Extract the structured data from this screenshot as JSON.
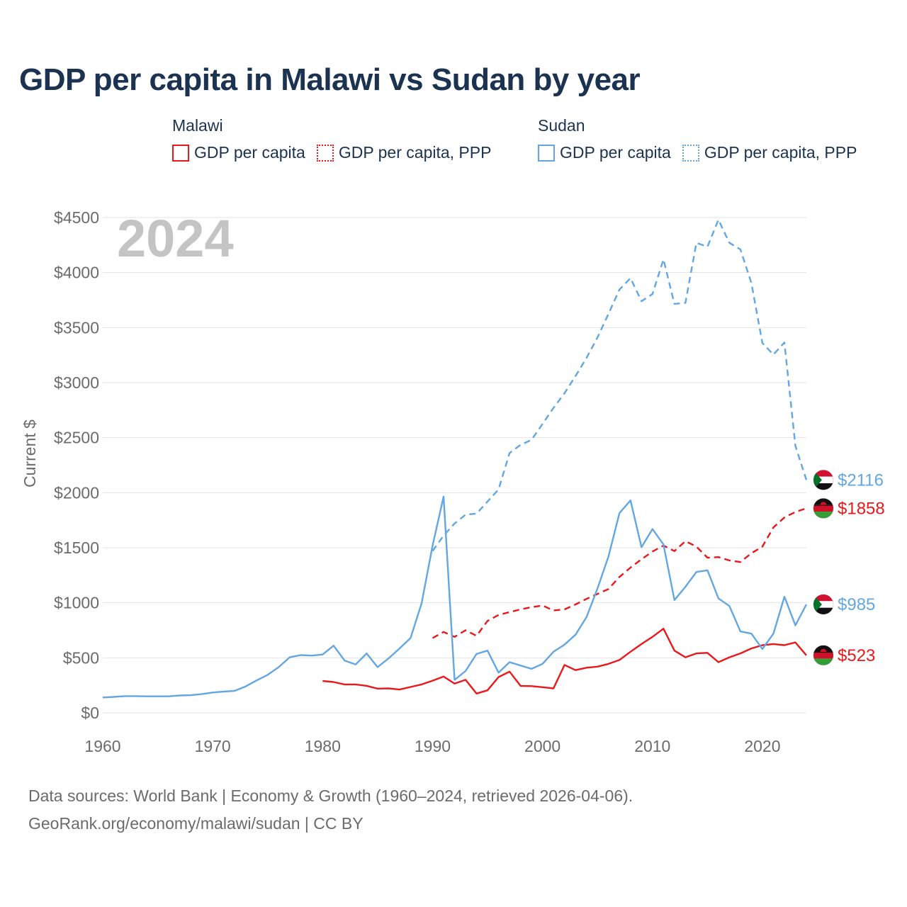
{
  "title": "GDP per capita in Malawi vs Sudan by year",
  "legend": {
    "groups": [
      {
        "name": "Malawi",
        "items": [
          "GDP per capita",
          "GDP per capita, PPP"
        ],
        "color": "#e8181b"
      },
      {
        "name": "Sudan",
        "items": [
          "GDP per capita",
          "GDP per capita, PPP"
        ],
        "color": "#62a6e2"
      }
    ]
  },
  "footer": {
    "line1": "Data sources: World Bank | Economy & Growth (1960–2024, retrieved 2026-04-06).",
    "line2": "GeoRank.org/economy/malawi/sudan | CC BY"
  },
  "chart_data": {
    "type": "line",
    "title": "GDP per capita in Malawi vs Sudan by year",
    "year_label": "2024",
    "ylabel": "Current $",
    "xlabel": "",
    "xlim": [
      1960,
      2024
    ],
    "ylim": [
      0,
      4500
    ],
    "y_ticks": [
      0,
      500,
      1000,
      1500,
      2000,
      2500,
      3000,
      3500,
      4000,
      4500
    ],
    "y_tick_labels": [
      "$0",
      "$500",
      "$1000",
      "$1500",
      "$2000",
      "$2500",
      "$3000",
      "$3500",
      "$4000",
      "$4500"
    ],
    "x_ticks": [
      1960,
      1970,
      1980,
      1990,
      2000,
      2010,
      2020
    ],
    "x_tick_labels": [
      "1960",
      "1970",
      "1980",
      "1990",
      "2000",
      "2010",
      "2020"
    ],
    "grid": true,
    "series": [
      {
        "name": "Malawi GDP per capita",
        "color": "#e8181b",
        "dash": "solid",
        "end_label": "$523",
        "flag": "malawi",
        "points": [
          [
            1980,
            290
          ],
          [
            1981,
            280
          ],
          [
            1982,
            258
          ],
          [
            1983,
            258
          ],
          [
            1984,
            245
          ],
          [
            1985,
            220
          ],
          [
            1986,
            222
          ],
          [
            1987,
            212
          ],
          [
            1988,
            235
          ],
          [
            1989,
            258
          ],
          [
            1990,
            292
          ],
          [
            1991,
            330
          ],
          [
            1992,
            265
          ],
          [
            1993,
            300
          ],
          [
            1994,
            175
          ],
          [
            1995,
            205
          ],
          [
            1996,
            325
          ],
          [
            1997,
            375
          ],
          [
            1998,
            245
          ],
          [
            1999,
            243
          ],
          [
            2000,
            233
          ],
          [
            2001,
            222
          ],
          [
            2002,
            435
          ],
          [
            2003,
            388
          ],
          [
            2004,
            410
          ],
          [
            2005,
            420
          ],
          [
            2006,
            445
          ],
          [
            2007,
            480
          ],
          [
            2008,
            555
          ],
          [
            2009,
            625
          ],
          [
            2010,
            690
          ],
          [
            2011,
            765
          ],
          [
            2012,
            565
          ],
          [
            2013,
            505
          ],
          [
            2014,
            540
          ],
          [
            2015,
            545
          ],
          [
            2016,
            460
          ],
          [
            2017,
            505
          ],
          [
            2018,
            540
          ],
          [
            2019,
            585
          ],
          [
            2020,
            615
          ],
          [
            2021,
            625
          ],
          [
            2022,
            615
          ],
          [
            2023,
            640
          ],
          [
            2024,
            523
          ]
        ]
      },
      {
        "name": "Malawi GDP per capita, PPP",
        "color": "#e8181b",
        "dash": "dashed",
        "end_label": "$1858",
        "flag": "malawi",
        "points": [
          [
            1990,
            680
          ],
          [
            1991,
            735
          ],
          [
            1992,
            690
          ],
          [
            1993,
            750
          ],
          [
            1994,
            700
          ],
          [
            1995,
            835
          ],
          [
            1996,
            890
          ],
          [
            1997,
            915
          ],
          [
            1998,
            940
          ],
          [
            1999,
            960
          ],
          [
            2000,
            975
          ],
          [
            2001,
            930
          ],
          [
            2002,
            940
          ],
          [
            2003,
            985
          ],
          [
            2004,
            1035
          ],
          [
            2005,
            1080
          ],
          [
            2006,
            1125
          ],
          [
            2007,
            1235
          ],
          [
            2008,
            1320
          ],
          [
            2009,
            1395
          ],
          [
            2010,
            1465
          ],
          [
            2011,
            1520
          ],
          [
            2012,
            1470
          ],
          [
            2013,
            1560
          ],
          [
            2014,
            1510
          ],
          [
            2015,
            1410
          ],
          [
            2016,
            1415
          ],
          [
            2017,
            1385
          ],
          [
            2018,
            1370
          ],
          [
            2019,
            1450
          ],
          [
            2020,
            1510
          ],
          [
            2021,
            1685
          ],
          [
            2022,
            1775
          ],
          [
            2023,
            1825
          ],
          [
            2024,
            1858
          ]
        ]
      },
      {
        "name": "Sudan GDP per capita",
        "color": "#62a6e2",
        "dash": "solid",
        "end_label": "$985",
        "flag": "sudan",
        "points": [
          [
            1960,
            140
          ],
          [
            1961,
            145
          ],
          [
            1962,
            152
          ],
          [
            1963,
            152
          ],
          [
            1964,
            150
          ],
          [
            1965,
            150
          ],
          [
            1966,
            150
          ],
          [
            1967,
            158
          ],
          [
            1968,
            160
          ],
          [
            1969,
            170
          ],
          [
            1970,
            185
          ],
          [
            1971,
            193
          ],
          [
            1972,
            200
          ],
          [
            1973,
            240
          ],
          [
            1974,
            295
          ],
          [
            1975,
            345
          ],
          [
            1976,
            415
          ],
          [
            1977,
            505
          ],
          [
            1978,
            525
          ],
          [
            1979,
            520
          ],
          [
            1980,
            530
          ],
          [
            1981,
            610
          ],
          [
            1982,
            475
          ],
          [
            1983,
            440
          ],
          [
            1984,
            540
          ],
          [
            1985,
            415
          ],
          [
            1986,
            495
          ],
          [
            1987,
            585
          ],
          [
            1988,
            680
          ],
          [
            1989,
            995
          ],
          [
            1990,
            1520
          ],
          [
            1991,
            1965
          ],
          [
            1992,
            300
          ],
          [
            1993,
            380
          ],
          [
            1994,
            535
          ],
          [
            1995,
            565
          ],
          [
            1996,
            365
          ],
          [
            1997,
            460
          ],
          [
            1998,
            430
          ],
          [
            1999,
            400
          ],
          [
            2000,
            445
          ],
          [
            2001,
            555
          ],
          [
            2002,
            620
          ],
          [
            2003,
            710
          ],
          [
            2004,
            870
          ],
          [
            2005,
            1130
          ],
          [
            2006,
            1420
          ],
          [
            2007,
            1815
          ],
          [
            2008,
            1930
          ],
          [
            2009,
            1505
          ],
          [
            2010,
            1670
          ],
          [
            2011,
            1530
          ],
          [
            2012,
            1025
          ],
          [
            2013,
            1145
          ],
          [
            2014,
            1280
          ],
          [
            2015,
            1295
          ],
          [
            2016,
            1040
          ],
          [
            2017,
            970
          ],
          [
            2018,
            740
          ],
          [
            2019,
            720
          ],
          [
            2020,
            580
          ],
          [
            2021,
            720
          ],
          [
            2022,
            1055
          ],
          [
            2023,
            795
          ],
          [
            2024,
            985
          ]
        ]
      },
      {
        "name": "Sudan GDP per capita, PPP",
        "color": "#62a6e2",
        "dash": "dashed",
        "end_label": "$2116",
        "flag": "sudan",
        "points": [
          [
            1990,
            1470
          ],
          [
            1991,
            1610
          ],
          [
            1992,
            1720
          ],
          [
            1993,
            1800
          ],
          [
            1994,
            1810
          ],
          [
            1995,
            1920
          ],
          [
            1996,
            2030
          ],
          [
            1997,
            2360
          ],
          [
            1998,
            2435
          ],
          [
            1999,
            2480
          ],
          [
            2000,
            2625
          ],
          [
            2001,
            2770
          ],
          [
            2002,
            2905
          ],
          [
            2003,
            3060
          ],
          [
            2004,
            3225
          ],
          [
            2005,
            3410
          ],
          [
            2006,
            3625
          ],
          [
            2007,
            3845
          ],
          [
            2008,
            3950
          ],
          [
            2009,
            3740
          ],
          [
            2010,
            3805
          ],
          [
            2011,
            4120
          ],
          [
            2012,
            3715
          ],
          [
            2013,
            3725
          ],
          [
            2014,
            4270
          ],
          [
            2015,
            4235
          ],
          [
            2016,
            4480
          ],
          [
            2017,
            4270
          ],
          [
            2018,
            4210
          ],
          [
            2019,
            3905
          ],
          [
            2020,
            3360
          ],
          [
            2021,
            3255
          ],
          [
            2022,
            3365
          ],
          [
            2023,
            2425
          ],
          [
            2024,
            2116
          ]
        ]
      }
    ]
  }
}
